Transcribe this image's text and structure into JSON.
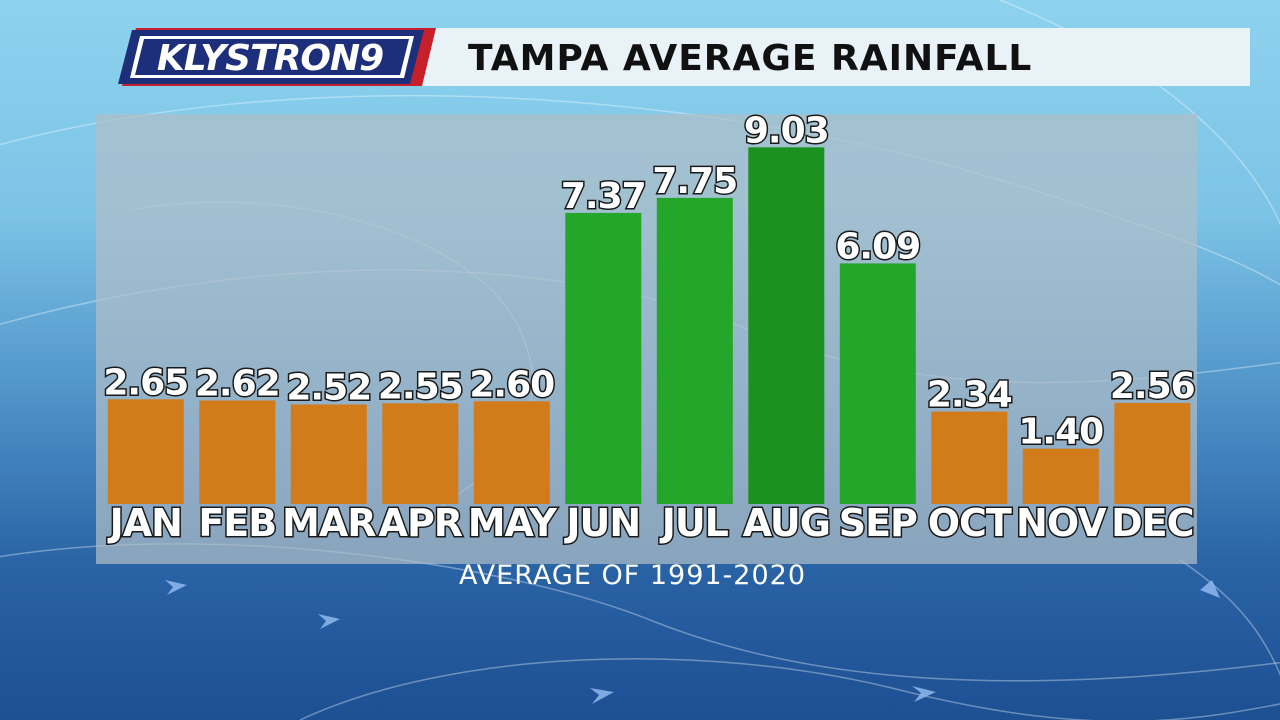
{
  "brand": {
    "name": "KLYSTRON",
    "number": "9"
  },
  "header": {
    "title": "TAMPA AVERAGE RAINFALL"
  },
  "footnote": "AVERAGE OF 1991-2020",
  "colors": {
    "dry_season": "#d27b1a",
    "wet_season": "#23a62a",
    "peak_month": "#1b9220",
    "logo_navy": "#1d2f7a",
    "logo_red": "#c8202a"
  },
  "chart_data": {
    "type": "bar",
    "title": "TAMPA AVERAGE RAINFALL",
    "categories": [
      "JAN",
      "FEB",
      "MAR",
      "APR",
      "MAY",
      "JUN",
      "JUL",
      "AUG",
      "SEP",
      "OCT",
      "NOV",
      "DEC"
    ],
    "values": [
      2.65,
      2.62,
      2.52,
      2.55,
      2.6,
      7.37,
      7.75,
      9.03,
      6.09,
      2.34,
      1.4,
      2.56
    ],
    "value_labels": [
      "2.65",
      "2.62",
      "2.52",
      "2.55",
      "2.60",
      "7.37",
      "7.75",
      "9.03",
      "6.09",
      "2.34",
      "1.40",
      "2.56"
    ],
    "bar_colors": [
      "dry",
      "dry",
      "dry",
      "dry",
      "dry",
      "wet",
      "wet",
      "peak",
      "wet",
      "dry",
      "dry",
      "dry"
    ],
    "xlabel": "",
    "ylabel": "",
    "grid": false
  }
}
